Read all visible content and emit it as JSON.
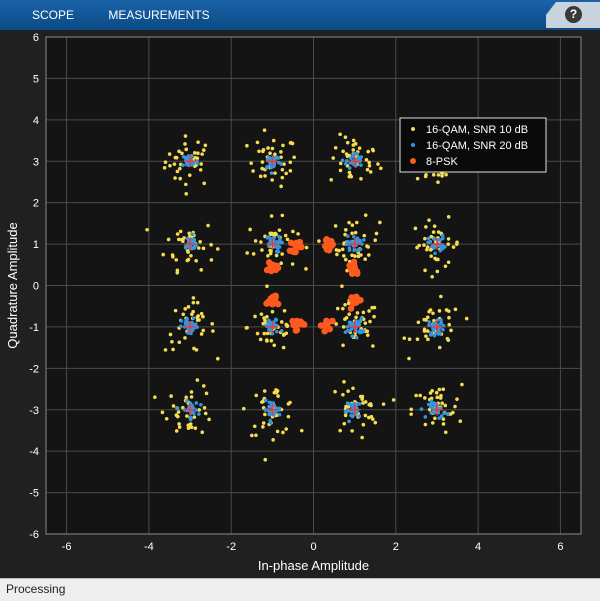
{
  "toolstrip": {
    "tabs": [
      {
        "label": "SCOPE"
      },
      {
        "label": "MEASUREMENTS"
      }
    ],
    "help_label": "?"
  },
  "status": {
    "text": "Processing"
  },
  "colors": {
    "background": "#202020",
    "axes_bg": "#141414",
    "grid": "#4b4b4b",
    "text": "#ffffff",
    "toolstrip": "#0b5394",
    "snr10": "#f5dc50",
    "snr20": "#3596dd",
    "psk": "#ff5a1e",
    "reference_marker": "#ff3030"
  },
  "chart_data": {
    "type": "scatter",
    "xlabel": "In-phase Amplitude",
    "ylabel": "Quadrature Amplitude",
    "xlim": [
      -6.5,
      6.5
    ],
    "ylim": [
      -6,
      6
    ],
    "xticks": [
      -6,
      -4,
      -2,
      0,
      2,
      4,
      6
    ],
    "yticks": [
      -6,
      -5,
      -4,
      -3,
      -2,
      -1,
      0,
      1,
      2,
      3,
      4,
      5,
      6
    ],
    "grid": true,
    "legend_placement": "top-right",
    "series": [
      {
        "name": "16-QAM, SNR 10 dB",
        "color": "#f5dc50",
        "description_points": "clusters around each 16-QAM constellation point",
        "centers": [
          [
            -3,
            3
          ],
          [
            -1,
            3
          ],
          [
            1,
            3
          ],
          [
            3,
            3
          ],
          [
            -3,
            1
          ],
          [
            -1,
            1
          ],
          [
            1,
            1
          ],
          [
            3,
            1
          ],
          [
            -3,
            -1
          ],
          [
            -1,
            -1
          ],
          [
            1,
            -1
          ],
          [
            3,
            -1
          ],
          [
            -3,
            -3
          ],
          [
            -1,
            -3
          ],
          [
            1,
            -3
          ],
          [
            3,
            -3
          ]
        ],
        "spread": 0.3
      },
      {
        "name": "16-QAM, SNR 20 dB",
        "color": "#3596dd",
        "centers": [
          [
            -3,
            3
          ],
          [
            -1,
            3
          ],
          [
            1,
            3
          ],
          [
            3,
            3
          ],
          [
            -3,
            1
          ],
          [
            -1,
            1
          ],
          [
            1,
            1
          ],
          [
            3,
            1
          ],
          [
            -3,
            -1
          ],
          [
            -1,
            -1
          ],
          [
            1,
            -1
          ],
          [
            3,
            -1
          ],
          [
            -3,
            -3
          ],
          [
            -1,
            -3
          ],
          [
            1,
            -3
          ],
          [
            3,
            -3
          ]
        ],
        "spread": 0.1
      },
      {
        "name": "8-PSK",
        "color": "#ff5a1e",
        "centers": [
          [
            -0.42,
            0.96
          ],
          [
            0.35,
            0.96
          ],
          [
            1.0,
            0.4
          ],
          [
            1.0,
            -0.35
          ],
          [
            0.35,
            -0.95
          ],
          [
            -0.42,
            -0.92
          ],
          [
            -1.0,
            -0.35
          ],
          [
            -1.0,
            0.4
          ]
        ],
        "spread": 0.07
      }
    ],
    "reference_markers": [
      [
        -3,
        3
      ],
      [
        -1,
        3
      ],
      [
        1,
        3
      ],
      [
        3,
        3
      ],
      [
        -3,
        1
      ],
      [
        -1,
        1
      ],
      [
        1,
        1
      ],
      [
        3,
        1
      ],
      [
        -3,
        -1
      ],
      [
        -1,
        -1
      ],
      [
        1,
        -1
      ],
      [
        3,
        -1
      ],
      [
        -3,
        -3
      ],
      [
        -1,
        -3
      ],
      [
        1,
        -3
      ],
      [
        3,
        -3
      ]
    ]
  }
}
